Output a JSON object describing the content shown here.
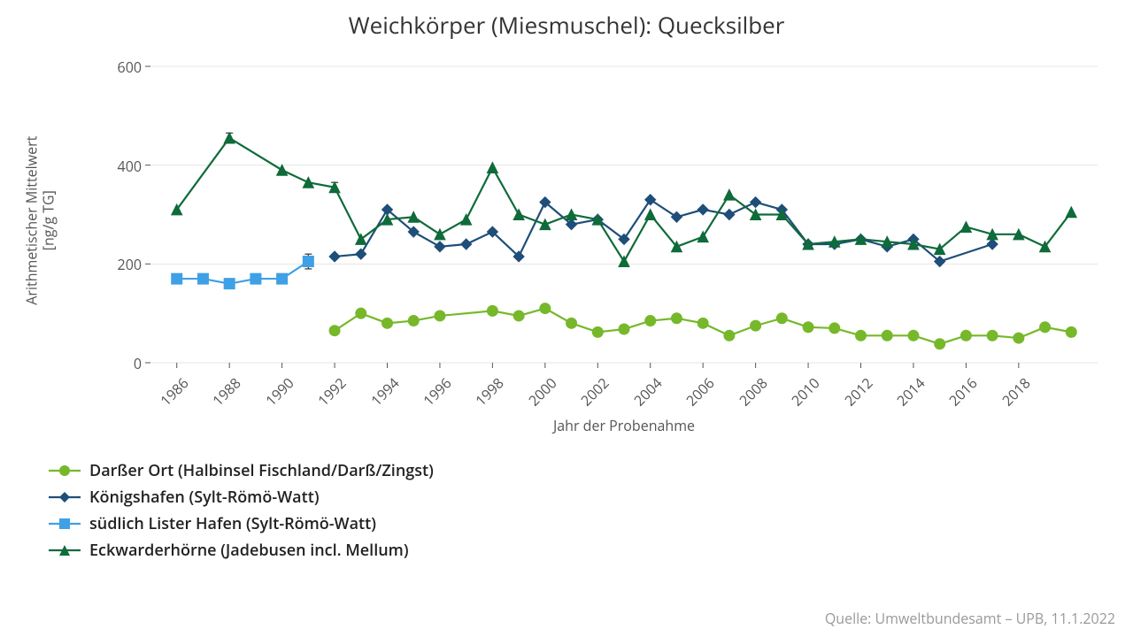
{
  "title": "Weichkörper (Miesmuschel): Quecksilber",
  "ylabel": "Arithmetischer Mittelwert\n[ng/g TG]",
  "xlabel": "Jahr der Probenahme",
  "source": "Quelle: Umweltbundesamt – UPB, 11.1.2022",
  "chart": {
    "type": "line",
    "background_color": "#ffffff",
    "grid_color": "#e6e6e6",
    "axis_color": "#555555",
    "title_fontsize": 26,
    "label_fontsize": 16,
    "tick_fontsize": 16,
    "legend_fontsize": 18,
    "xlim": [
      1985,
      2021
    ],
    "ylim": [
      0,
      600
    ],
    "ytick_step": 200,
    "xtick_step": 2,
    "xtick_start": 1986,
    "xtick_end": 2019,
    "line_width": 2.2,
    "marker_size": 6,
    "series": [
      {
        "name": "Darßer Ort (Halbinsel Fischland/Darß/Zingst)",
        "color": "#76b82a",
        "marker": "circle",
        "years": [
          1992,
          1993,
          1994,
          1995,
          1996,
          1998,
          1999,
          2000,
          2001,
          2002,
          2003,
          2004,
          2005,
          2006,
          2007,
          2008,
          2009,
          2010,
          2011,
          2012,
          2013,
          2014,
          2015,
          2016,
          2017,
          2018,
          2019,
          2020
        ],
        "values": [
          65,
          100,
          80,
          85,
          95,
          105,
          95,
          110,
          80,
          62,
          68,
          85,
          90,
          80,
          55,
          75,
          90,
          72,
          70,
          55,
          55,
          55,
          38,
          55,
          55,
          50,
          72,
          62
        ],
        "errors": [
          0,
          8,
          5,
          5,
          0,
          0,
          5,
          8,
          0,
          0,
          0,
          0,
          0,
          0,
          0,
          0,
          0,
          0,
          0,
          0,
          0,
          0,
          0,
          0,
          0,
          0,
          0,
          0
        ]
      },
      {
        "name": "Königshafen (Sylt-Römö-Watt)",
        "color": "#1e4e79",
        "marker": "diamond",
        "years": [
          1992,
          1993,
          1994,
          1995,
          1996,
          1997,
          1998,
          1999,
          2000,
          2001,
          2002,
          2003,
          2004,
          2005,
          2006,
          2007,
          2008,
          2009,
          2010,
          2011,
          2012,
          2013,
          2014,
          2015,
          2017
        ],
        "values": [
          215,
          220,
          310,
          265,
          235,
          240,
          265,
          215,
          325,
          280,
          290,
          250,
          330,
          295,
          310,
          300,
          325,
          310,
          240,
          240,
          250,
          235,
          250,
          205,
          240
        ],
        "errors": [
          0,
          0,
          0,
          0,
          0,
          0,
          0,
          0,
          0,
          0,
          0,
          0,
          0,
          0,
          0,
          0,
          0,
          0,
          0,
          0,
          0,
          0,
          0,
          0,
          0
        ]
      },
      {
        "name": "südlich Lister Hafen (Sylt-Römö-Watt)",
        "color": "#3fa0e6",
        "marker": "square",
        "years": [
          1986,
          1987,
          1988,
          1989,
          1990,
          1991
        ],
        "values": [
          170,
          170,
          160,
          170,
          170,
          205
        ],
        "errors": [
          0,
          0,
          5,
          0,
          0,
          15
        ]
      },
      {
        "name": "Eckwarderhörne (Jadebusen incl. Mellum)",
        "color": "#0f6b3a",
        "marker": "triangle",
        "years": [
          1986,
          1988,
          1990,
          1991,
          1992,
          1993,
          1994,
          1995,
          1996,
          1997,
          1998,
          1999,
          2000,
          2001,
          2002,
          2003,
          2004,
          2005,
          2006,
          2007,
          2008,
          2009,
          2010,
          2011,
          2012,
          2013,
          2014,
          2015,
          2016,
          2017,
          2018,
          2019,
          2020
        ],
        "values": [
          310,
          455,
          390,
          365,
          355,
          250,
          290,
          295,
          260,
          290,
          395,
          300,
          280,
          300,
          290,
          205,
          300,
          235,
          255,
          340,
          300,
          300,
          240,
          245,
          250,
          245,
          240,
          230,
          275,
          260,
          260,
          235,
          305
        ],
        "errors": [
          0,
          10,
          0,
          0,
          10,
          0,
          0,
          0,
          0,
          0,
          0,
          0,
          0,
          0,
          0,
          0,
          0,
          0,
          0,
          0,
          0,
          0,
          0,
          0,
          0,
          0,
          0,
          0,
          0,
          0,
          0,
          0,
          0
        ]
      }
    ],
    "legend_position": "bottom-left"
  }
}
